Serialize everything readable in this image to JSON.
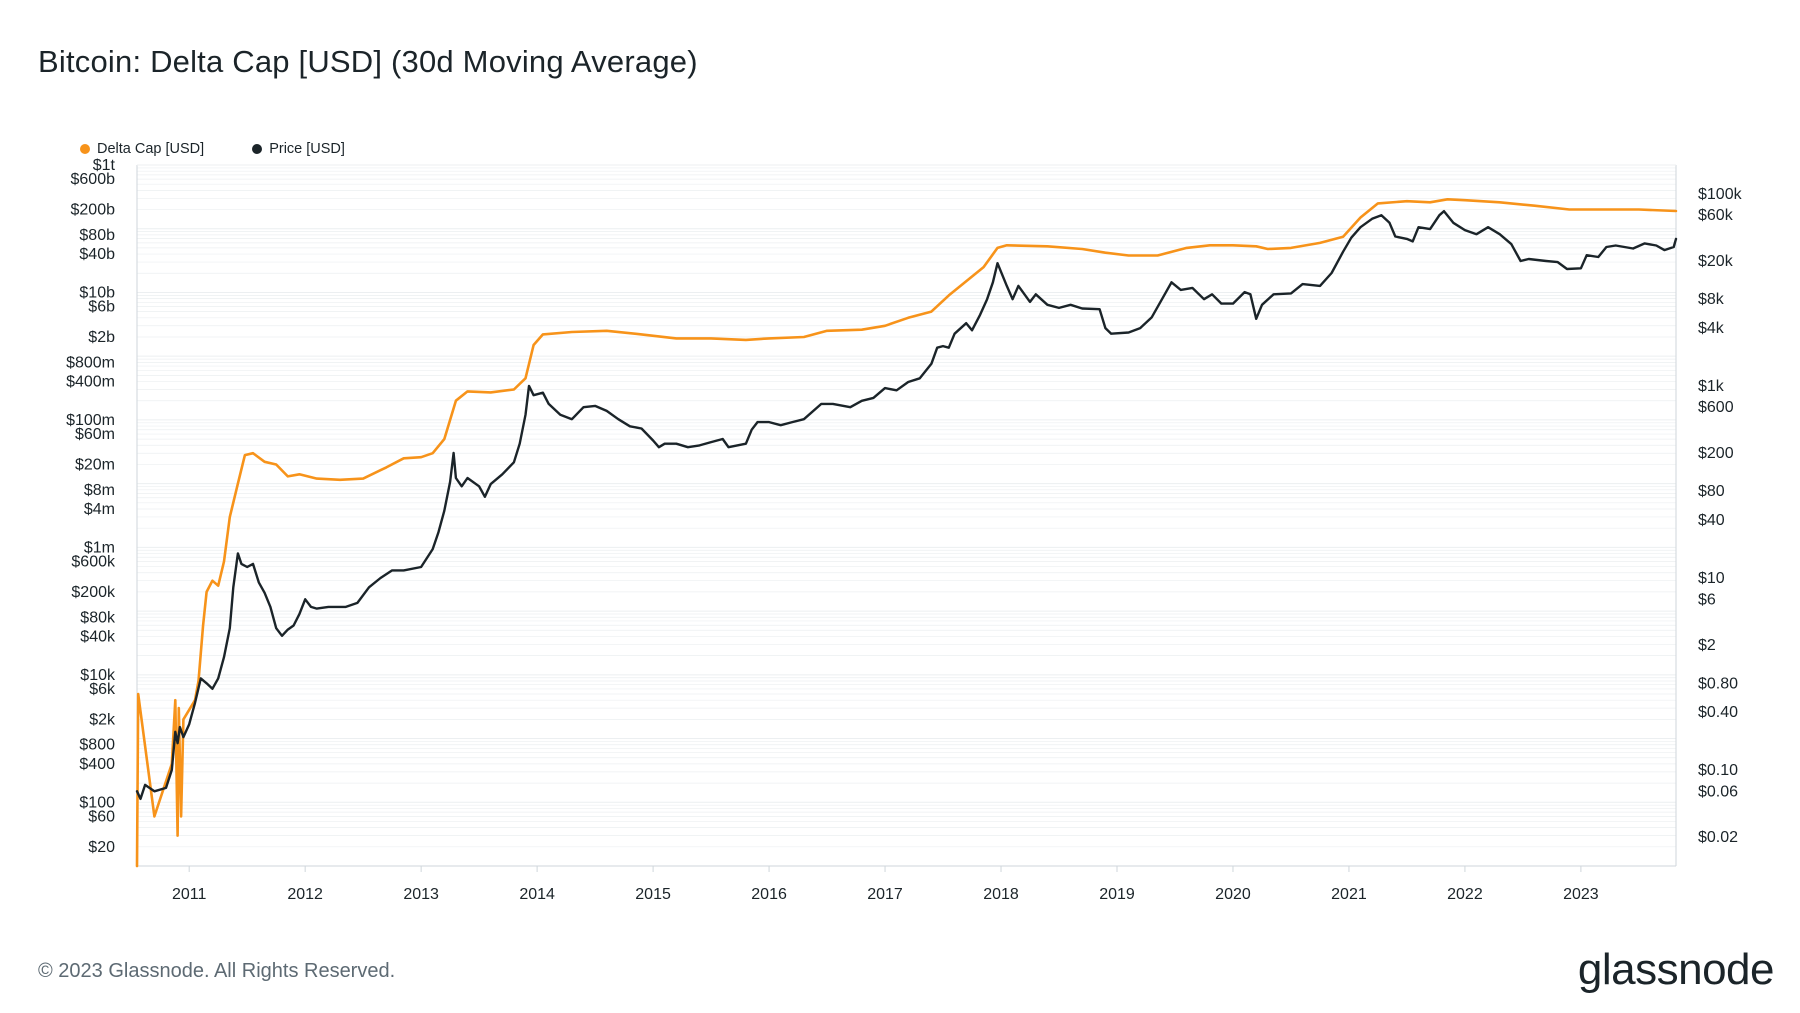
{
  "header": {
    "title": "Bitcoin: Delta Cap [USD] (30d Moving Average)"
  },
  "footer": {
    "copyright": "© 2023 Glassnode. All Rights Reserved.",
    "brand": "glassnode"
  },
  "colors": {
    "delta_cap": "#f7931a",
    "price": "#1b2429",
    "grid": "#eceff1",
    "axis": "#cfd6db"
  },
  "chart_data": {
    "type": "line",
    "title": "Bitcoin: Delta Cap [USD] (30d Moving Average)",
    "x_axis": {
      "type": "time",
      "range": [
        2010.55,
        2023.82
      ],
      "tick_labels": [
        "2011",
        "2012",
        "2013",
        "2014",
        "2015",
        "2016",
        "2017",
        "2018",
        "2019",
        "2020",
        "2021",
        "2022",
        "2023"
      ],
      "tick_values": [
        2011,
        2012,
        2013,
        2014,
        2015,
        2016,
        2017,
        2018,
        2019,
        2020,
        2021,
        2022,
        2023
      ]
    },
    "y_left": {
      "scale": "log",
      "range": [
        10,
        1000000000000
      ],
      "tick_labels": [
        "$1t",
        "$600b",
        "$200b",
        "$80b",
        "$40b",
        "$10b",
        "$6b",
        "$2b",
        "$800m",
        "$400m",
        "$100m",
        "$60m",
        "$20m",
        "$8m",
        "$4m",
        "$1m",
        "$600k",
        "$200k",
        "$80k",
        "$40k",
        "$10k",
        "$6k",
        "$2k",
        "$800",
        "$400",
        "$100",
        "$60",
        "$20"
      ],
      "tick_values": [
        1000000000000.0,
        600000000000.0,
        200000000000.0,
        80000000000.0,
        40000000000.0,
        10000000000.0,
        6000000000.0,
        2000000000.0,
        800000000.0,
        400000000.0,
        100000000.0,
        60000000.0,
        20000000.0,
        8000000.0,
        4000000.0,
        1000000.0,
        600000.0,
        200000.0,
        80000.0,
        40000.0,
        10000.0,
        6000.0,
        2000.0,
        800,
        400,
        100,
        60,
        20
      ]
    },
    "y_right": {
      "scale": "log",
      "range": [
        0.01,
        200000
      ],
      "tick_labels": [
        "$100k",
        "$60k",
        "$20k",
        "$8k",
        "$4k",
        "$1k",
        "$600",
        "$200",
        "$80",
        "$40",
        "$10",
        "$6",
        "$2",
        "$0.80",
        "$0.40",
        "$0.10",
        "$0.06",
        "$0.02"
      ],
      "tick_values": [
        100000,
        60000,
        20000,
        8000,
        4000,
        1000,
        600,
        200,
        80,
        40,
        10,
        6,
        2,
        0.8,
        0.4,
        0.1,
        0.06,
        0.02
      ]
    },
    "series": [
      {
        "name": "Delta Cap [USD]",
        "axis": "left",
        "color": "#f7931a",
        "points": [
          [
            2010.55,
            10
          ],
          [
            2010.56,
            5000
          ],
          [
            2010.7,
            60
          ],
          [
            2010.85,
            400
          ],
          [
            2010.88,
            4000
          ],
          [
            2010.9,
            30
          ],
          [
            2010.91,
            3000
          ],
          [
            2010.93,
            60
          ],
          [
            2010.95,
            2000
          ],
          [
            2011.05,
            4000
          ],
          [
            2011.08,
            8000
          ],
          [
            2011.12,
            60000
          ],
          [
            2011.15,
            200000
          ],
          [
            2011.2,
            300000
          ],
          [
            2011.25,
            250000
          ],
          [
            2011.3,
            600000
          ],
          [
            2011.35,
            3000000
          ],
          [
            2011.42,
            10000000
          ],
          [
            2011.48,
            28000000
          ],
          [
            2011.55,
            30000000
          ],
          [
            2011.65,
            22000000
          ],
          [
            2011.75,
            20000000
          ],
          [
            2011.85,
            13000000
          ],
          [
            2011.95,
            14000000
          ],
          [
            2012.1,
            12000000
          ],
          [
            2012.3,
            11500000
          ],
          [
            2012.5,
            12000000
          ],
          [
            2012.7,
            18000000
          ],
          [
            2012.85,
            25000000
          ],
          [
            2013.0,
            26000000
          ],
          [
            2013.1,
            30000000
          ],
          [
            2013.2,
            50000000
          ],
          [
            2013.3,
            200000000
          ],
          [
            2013.4,
            280000000
          ],
          [
            2013.6,
            270000000
          ],
          [
            2013.8,
            300000000
          ],
          [
            2013.9,
            450000000
          ],
          [
            2013.97,
            1500000000
          ],
          [
            2014.05,
            2200000000
          ],
          [
            2014.3,
            2400000000
          ],
          [
            2014.6,
            2500000000
          ],
          [
            2014.9,
            2200000000
          ],
          [
            2015.2,
            1900000000
          ],
          [
            2015.5,
            1900000000
          ],
          [
            2015.8,
            1800000000
          ],
          [
            2016.0,
            1900000000
          ],
          [
            2016.3,
            2000000000
          ],
          [
            2016.5,
            2500000000
          ],
          [
            2016.8,
            2600000000
          ],
          [
            2017.0,
            3000000000
          ],
          [
            2017.2,
            4000000000
          ],
          [
            2017.4,
            5000000000
          ],
          [
            2017.55,
            9000000000
          ],
          [
            2017.7,
            15000000000
          ],
          [
            2017.85,
            25000000000
          ],
          [
            2017.97,
            50000000000
          ],
          [
            2018.05,
            55000000000
          ],
          [
            2018.4,
            53000000000
          ],
          [
            2018.7,
            48000000000
          ],
          [
            2018.9,
            42000000000
          ],
          [
            2019.1,
            38000000000
          ],
          [
            2019.35,
            38000000000
          ],
          [
            2019.6,
            50000000000
          ],
          [
            2019.8,
            55000000000
          ],
          [
            2020.0,
            55000000000
          ],
          [
            2020.2,
            53000000000
          ],
          [
            2020.3,
            48000000000
          ],
          [
            2020.5,
            50000000000
          ],
          [
            2020.75,
            60000000000
          ],
          [
            2020.95,
            75000000000
          ],
          [
            2021.1,
            150000000000
          ],
          [
            2021.25,
            250000000000
          ],
          [
            2021.5,
            270000000000
          ],
          [
            2021.7,
            260000000000
          ],
          [
            2021.85,
            290000000000
          ],
          [
            2022.0,
            280000000000
          ],
          [
            2022.3,
            260000000000
          ],
          [
            2022.6,
            230000000000
          ],
          [
            2022.9,
            200000000000
          ],
          [
            2023.2,
            200000000000
          ],
          [
            2023.5,
            200000000000
          ],
          [
            2023.82,
            190000000000
          ]
        ]
      },
      {
        "name": "Price [USD]",
        "axis": "right",
        "color": "#1b2429",
        "points": [
          [
            2010.55,
            0.06
          ],
          [
            2010.58,
            0.05
          ],
          [
            2010.62,
            0.07
          ],
          [
            2010.7,
            0.06
          ],
          [
            2010.8,
            0.065
          ],
          [
            2010.85,
            0.1
          ],
          [
            2010.88,
            0.25
          ],
          [
            2010.9,
            0.19
          ],
          [
            2010.92,
            0.28
          ],
          [
            2010.95,
            0.22
          ],
          [
            2011.0,
            0.3
          ],
          [
            2011.05,
            0.5
          ],
          [
            2011.1,
            0.9
          ],
          [
            2011.15,
            0.8
          ],
          [
            2011.2,
            0.7
          ],
          [
            2011.25,
            0.9
          ],
          [
            2011.3,
            1.5
          ],
          [
            2011.35,
            3
          ],
          [
            2011.38,
            8
          ],
          [
            2011.42,
            18
          ],
          [
            2011.45,
            14
          ],
          [
            2011.5,
            13
          ],
          [
            2011.55,
            14
          ],
          [
            2011.6,
            9
          ],
          [
            2011.65,
            7
          ],
          [
            2011.7,
            5
          ],
          [
            2011.75,
            3
          ],
          [
            2011.8,
            2.5
          ],
          [
            2011.85,
            2.9
          ],
          [
            2011.9,
            3.2
          ],
          [
            2011.95,
            4.2
          ],
          [
            2012.0,
            6
          ],
          [
            2012.05,
            5
          ],
          [
            2012.1,
            4.8
          ],
          [
            2012.2,
            5
          ],
          [
            2012.35,
            5
          ],
          [
            2012.45,
            5.5
          ],
          [
            2012.55,
            8
          ],
          [
            2012.65,
            10
          ],
          [
            2012.75,
            12
          ],
          [
            2012.85,
            12
          ],
          [
            2013.0,
            13
          ],
          [
            2013.1,
            20
          ],
          [
            2013.15,
            30
          ],
          [
            2013.2,
            50
          ],
          [
            2013.25,
            100
          ],
          [
            2013.28,
            200
          ],
          [
            2013.3,
            110
          ],
          [
            2013.35,
            90
          ],
          [
            2013.4,
            110
          ],
          [
            2013.5,
            90
          ],
          [
            2013.55,
            70
          ],
          [
            2013.6,
            95
          ],
          [
            2013.7,
            120
          ],
          [
            2013.8,
            160
          ],
          [
            2013.85,
            250
          ],
          [
            2013.9,
            500
          ],
          [
            2013.93,
            1000
          ],
          [
            2013.97,
            800
          ],
          [
            2014.05,
            850
          ],
          [
            2014.1,
            650
          ],
          [
            2014.2,
            500
          ],
          [
            2014.3,
            450
          ],
          [
            2014.4,
            600
          ],
          [
            2014.5,
            620
          ],
          [
            2014.6,
            550
          ],
          [
            2014.7,
            450
          ],
          [
            2014.8,
            380
          ],
          [
            2014.9,
            360
          ],
          [
            2015.0,
            270
          ],
          [
            2015.05,
            230
          ],
          [
            2015.1,
            250
          ],
          [
            2015.2,
            250
          ],
          [
            2015.3,
            230
          ],
          [
            2015.4,
            240
          ],
          [
            2015.5,
            260
          ],
          [
            2015.6,
            280
          ],
          [
            2015.65,
            230
          ],
          [
            2015.8,
            250
          ],
          [
            2015.85,
            350
          ],
          [
            2015.9,
            420
          ],
          [
            2016.0,
            420
          ],
          [
            2016.1,
            390
          ],
          [
            2016.2,
            420
          ],
          [
            2016.3,
            450
          ],
          [
            2016.45,
            650
          ],
          [
            2016.55,
            650
          ],
          [
            2016.7,
            600
          ],
          [
            2016.8,
            700
          ],
          [
            2016.9,
            750
          ],
          [
            2017.0,
            950
          ],
          [
            2017.1,
            900
          ],
          [
            2017.2,
            1100
          ],
          [
            2017.3,
            1200
          ],
          [
            2017.4,
            1700
          ],
          [
            2017.45,
            2500
          ],
          [
            2017.5,
            2600
          ],
          [
            2017.55,
            2500
          ],
          [
            2017.6,
            3500
          ],
          [
            2017.7,
            4500
          ],
          [
            2017.75,
            3800
          ],
          [
            2017.82,
            5500
          ],
          [
            2017.88,
            8000
          ],
          [
            2017.93,
            12000
          ],
          [
            2017.97,
            19000
          ],
          [
            2018.05,
            11000
          ],
          [
            2018.1,
            8000
          ],
          [
            2018.15,
            11000
          ],
          [
            2018.25,
            7500
          ],
          [
            2018.3,
            9000
          ],
          [
            2018.4,
            7000
          ],
          [
            2018.5,
            6500
          ],
          [
            2018.6,
            7000
          ],
          [
            2018.7,
            6400
          ],
          [
            2018.85,
            6300
          ],
          [
            2018.9,
            4000
          ],
          [
            2018.95,
            3500
          ],
          [
            2019.1,
            3600
          ],
          [
            2019.2,
            4000
          ],
          [
            2019.3,
            5200
          ],
          [
            2019.4,
            8500
          ],
          [
            2019.47,
            12000
          ],
          [
            2019.55,
            10000
          ],
          [
            2019.65,
            10500
          ],
          [
            2019.75,
            8000
          ],
          [
            2019.82,
            9000
          ],
          [
            2019.9,
            7200
          ],
          [
            2020.0,
            7200
          ],
          [
            2020.1,
            9500
          ],
          [
            2020.15,
            9000
          ],
          [
            2020.2,
            5000
          ],
          [
            2020.25,
            7000
          ],
          [
            2020.35,
            9000
          ],
          [
            2020.5,
            9200
          ],
          [
            2020.6,
            11500
          ],
          [
            2020.75,
            11000
          ],
          [
            2020.85,
            15000
          ],
          [
            2020.95,
            25000
          ],
          [
            2021.02,
            35000
          ],
          [
            2021.1,
            45000
          ],
          [
            2021.2,
            55000
          ],
          [
            2021.28,
            60000
          ],
          [
            2021.35,
            50000
          ],
          [
            2021.4,
            36000
          ],
          [
            2021.5,
            34000
          ],
          [
            2021.55,
            32000
          ],
          [
            2021.6,
            45000
          ],
          [
            2021.7,
            43000
          ],
          [
            2021.78,
            60000
          ],
          [
            2021.82,
            66000
          ],
          [
            2021.9,
            50000
          ],
          [
            2022.0,
            42000
          ],
          [
            2022.1,
            38000
          ],
          [
            2022.2,
            45000
          ],
          [
            2022.3,
            38000
          ],
          [
            2022.4,
            30000
          ],
          [
            2022.48,
            20000
          ],
          [
            2022.55,
            21000
          ],
          [
            2022.7,
            20000
          ],
          [
            2022.8,
            19500
          ],
          [
            2022.88,
            16500
          ],
          [
            2023.0,
            16800
          ],
          [
            2023.05,
            23000
          ],
          [
            2023.15,
            22000
          ],
          [
            2023.22,
            28000
          ],
          [
            2023.3,
            29000
          ],
          [
            2023.45,
            27000
          ],
          [
            2023.55,
            30500
          ],
          [
            2023.65,
            29000
          ],
          [
            2023.72,
            26000
          ],
          [
            2023.8,
            28000
          ],
          [
            2023.82,
            34000
          ]
        ]
      }
    ]
  }
}
